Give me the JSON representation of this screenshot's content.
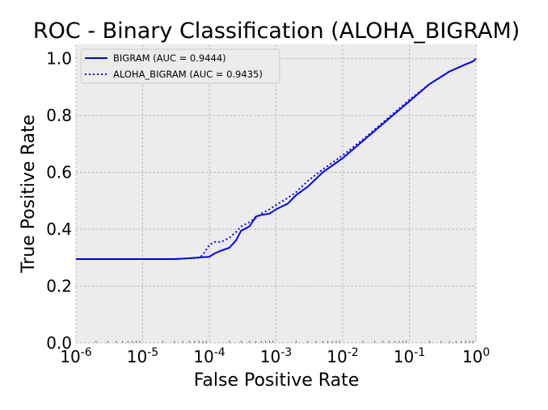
{
  "chart_data": {
    "type": "line",
    "title": "ROC - Binary Classification (ALOHA_BIGRAM)",
    "xlabel": "False Positive Rate",
    "ylabel": "True Positive Rate",
    "x_scale": "log",
    "xlim": [
      1e-06,
      1
    ],
    "ylim": [
      0,
      1.05
    ],
    "grid": true,
    "legend_position": "top-left",
    "x_ticks": [
      {
        "value": 1e-06,
        "base": "10",
        "exp": "-6"
      },
      {
        "value": 1e-05,
        "base": "10",
        "exp": "-5"
      },
      {
        "value": 0.0001,
        "base": "10",
        "exp": "-4"
      },
      {
        "value": 0.001,
        "base": "10",
        "exp": "-3"
      },
      {
        "value": 0.01,
        "base": "10",
        "exp": "-2"
      },
      {
        "value": 0.1,
        "base": "10",
        "exp": "-1"
      },
      {
        "value": 1,
        "base": "10",
        "exp": "0"
      }
    ],
    "y_ticks": [
      {
        "value": 0.0,
        "label": "0.0"
      },
      {
        "value": 0.2,
        "label": "0.2"
      },
      {
        "value": 0.4,
        "label": "0.4"
      },
      {
        "value": 0.6,
        "label": "0.6"
      },
      {
        "value": 0.8,
        "label": "0.8"
      },
      {
        "value": 1.0,
        "label": "1.0"
      }
    ],
    "series": [
      {
        "name": "BIGRAM (AUC = 0.9444)",
        "color": "#0000ff",
        "line_style": "solid",
        "x": [
          1e-06,
          1e-05,
          3e-05,
          5e-05,
          8e-05,
          0.0001,
          0.00012,
          0.00015,
          0.0002,
          0.00025,
          0.0003,
          0.0004,
          0.0005,
          0.0006,
          0.0008,
          0.001,
          0.0015,
          0.002,
          0.003,
          0.005,
          0.01,
          0.02,
          0.05,
          0.1,
          0.2,
          0.4,
          0.7,
          0.9,
          1.0
        ],
        "y": [
          0.295,
          0.295,
          0.295,
          0.298,
          0.302,
          0.303,
          0.315,
          0.325,
          0.335,
          0.36,
          0.395,
          0.41,
          0.445,
          0.45,
          0.455,
          0.47,
          0.49,
          0.52,
          0.55,
          0.6,
          0.65,
          0.71,
          0.79,
          0.85,
          0.91,
          0.955,
          0.98,
          0.99,
          1.0
        ]
      },
      {
        "name": "ALOHA_BIGRAM (AUC = 0.9435)",
        "color": "#0000ff",
        "line_style": "dotted",
        "x": [
          1e-06,
          1e-05,
          3e-05,
          5e-05,
          7e-05,
          8e-05,
          0.0001,
          0.00012,
          0.00015,
          0.0002,
          0.00025,
          0.0003,
          0.0004,
          0.0005,
          0.0006,
          0.0008,
          0.001,
          0.0015,
          0.002,
          0.003,
          0.005,
          0.01,
          0.02,
          0.05,
          0.1,
          0.2,
          0.4,
          0.7,
          0.9,
          1.0
        ],
        "y": [
          0.295,
          0.295,
          0.295,
          0.298,
          0.3,
          0.31,
          0.345,
          0.355,
          0.355,
          0.37,
          0.39,
          0.41,
          0.425,
          0.44,
          0.455,
          0.47,
          0.485,
          0.51,
          0.53,
          0.57,
          0.61,
          0.66,
          0.715,
          0.795,
          0.855,
          0.91,
          0.955,
          0.98,
          0.99,
          1.0
        ]
      }
    ]
  }
}
